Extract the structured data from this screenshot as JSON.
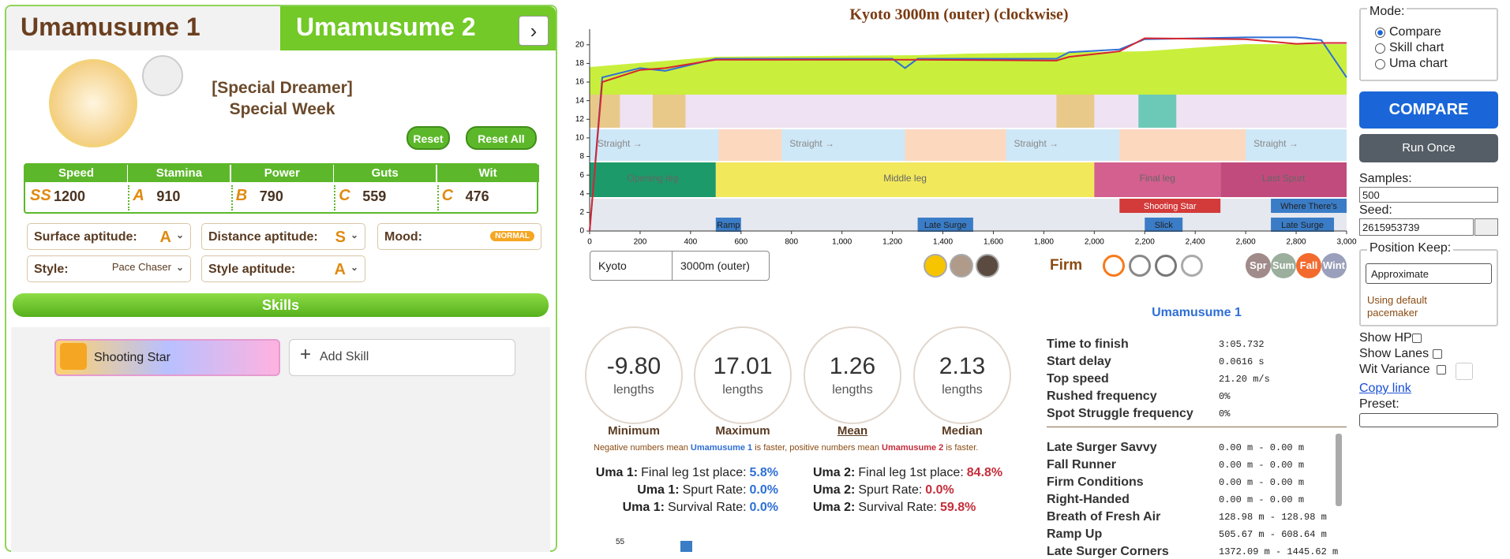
{
  "tabs": [
    "Umamusume 1",
    "Umamusume 2"
  ],
  "uma": {
    "title": "[Special Dreamer]",
    "name": "Special Week",
    "buttons": [
      "Reset",
      "Reset All"
    ]
  },
  "stats": [
    {
      "label": "Speed",
      "grade": "SS",
      "value": 1200
    },
    {
      "label": "Stamina",
      "grade": "A",
      "value": 910
    },
    {
      "label": "Power",
      "grade": "B",
      "value": 790
    },
    {
      "label": "Guts",
      "grade": "C",
      "value": 559
    },
    {
      "label": "Wit",
      "grade": "C",
      "value": 476
    }
  ],
  "aptitudes": [
    {
      "label": "Surface aptitude:",
      "value": "A"
    },
    {
      "label": "Distance aptitude:",
      "value": "S"
    },
    {
      "label": "Mood:",
      "value": "NORMAL"
    },
    {
      "label": "Style:",
      "value": "Pace Chaser"
    },
    {
      "label": "Style aptitude:",
      "value": "A"
    }
  ],
  "skills": {
    "header": "Skills",
    "items": [
      "Shooting Star"
    ],
    "add": "Add Skill"
  },
  "race_chart": {
    "type": "line",
    "title": "Kyoto 3000m (outer) (clockwise)",
    "x": [
      0,
      50,
      200,
      300,
      500,
      1200,
      1250,
      1300,
      1850,
      1900,
      2100,
      2200,
      2600,
      2800,
      2900,
      3000
    ],
    "series": [
      {
        "color": "#2f6fd6",
        "values": [
          0,
          16.5,
          17.5,
          17.2,
          18.5,
          18.5,
          17.5,
          18.5,
          18.5,
          19.2,
          19.5,
          20.6,
          20.8,
          20.8,
          20.5,
          16.5
        ]
      },
      {
        "color": "#d6262e",
        "values": [
          0,
          16,
          17.3,
          17.5,
          18.4,
          18.4,
          18.4,
          18.4,
          18.3,
          18.7,
          19.3,
          20.7,
          20.6,
          20.1,
          20.2,
          20.2
        ]
      }
    ],
    "xlim": [
      0,
      3000
    ],
    "ylim": [
      0,
      21
    ],
    "xticks": [
      0,
      200,
      400,
      600,
      800,
      {
        "value": 1000,
        "label": "1,000"
      },
      {
        "value": 1200,
        "label": "1,200"
      },
      {
        "value": 1400,
        "label": "1,400"
      },
      {
        "value": 1600,
        "label": "1,600"
      },
      {
        "value": 1800,
        "label": "1,800"
      },
      {
        "value": 2000,
        "label": "2,000"
      },
      {
        "value": 2200,
        "label": "2,200"
      },
      {
        "value": 2400,
        "label": "2,400"
      },
      {
        "value": 2600,
        "label": "2,600"
      },
      {
        "value": 2800,
        "label": "2,800"
      },
      {
        "value": 3000,
        "label": "3,000"
      }
    ],
    "yticks": [
      0,
      2,
      4,
      6,
      8,
      10,
      12,
      14,
      16,
      18,
      20
    ],
    "phases": [
      "Opening leg",
      "Middle leg",
      "Final leg",
      "Last Spurt"
    ],
    "sections": [
      "Straight →",
      "Straight →",
      "Straight →",
      "Straight →"
    ],
    "skill_labels": [
      "Ramp",
      "Late Surge",
      "Shooting Star",
      "Slick",
      "Where There's",
      "Late Surge"
    ]
  },
  "controls": {
    "track": "Kyoto",
    "course": "3000m (outer)",
    "ground": "Firm",
    "seasons": [
      "Spr",
      "Sum",
      "Fall",
      "Wint"
    ]
  },
  "summary": {
    "values": [
      {
        "value": "-9.80",
        "unit": "lengths",
        "label": "Minimum"
      },
      {
        "value": "17.01",
        "unit": "lengths",
        "label": "Maximum"
      },
      {
        "value": "1.26",
        "unit": "lengths",
        "label": "Mean"
      },
      {
        "value": "2.13",
        "unit": "lengths",
        "label": "Median"
      }
    ],
    "note": [
      "Negative numbers mean ",
      "Umamusume 1",
      " is faster, positive numbers mean ",
      "Umamusume 2",
      " is faster."
    ],
    "rates": [
      [
        {
          "who": "Uma 1:",
          "what": "Final leg 1st place:",
          "value": "5.8%"
        },
        {
          "who": "Uma 2:",
          "what": "Final leg 1st place:",
          "value": "84.8%"
        }
      ],
      [
        {
          "who": "Uma 1:",
          "what": "Spurt Rate:",
          "value": "0.0%"
        },
        {
          "who": "Uma 2:",
          "what": "Spurt Rate:",
          "value": "0.0%"
        }
      ],
      [
        {
          "who": "Uma 1:",
          "what": "Survival Rate:",
          "value": "0.0%"
        },
        {
          "who": "Uma 2:",
          "what": "Survival Rate:",
          "value": "59.8%"
        }
      ]
    ],
    "hist_tick": 55
  },
  "details": {
    "header": "Umamusume 1",
    "rows": [
      [
        "Time to finish",
        "3:05.732"
      ],
      [
        "Start delay",
        "0.0616 s"
      ],
      [
        "Top speed",
        "21.20 m/s"
      ],
      [
        "Rushed frequency",
        "0%"
      ],
      [
        "Spot Struggle frequency",
        "0%"
      ]
    ],
    "skills": [
      [
        "Late Surger Savvy",
        "0.00 m - 0.00 m"
      ],
      [
        "Fall Runner",
        "0.00 m - 0.00 m"
      ],
      [
        "Firm Conditions",
        "0.00 m - 0.00 m"
      ],
      [
        "Right-Handed",
        "0.00 m - 0.00 m"
      ],
      [
        "Breath of Fresh Air",
        "128.98 m - 128.98 m"
      ],
      [
        "Ramp Up",
        "505.67 m - 608.64 m"
      ],
      [
        "Late Surger Corners",
        "1372.09 m - 1445.62 m"
      ]
    ]
  },
  "sidebar": {
    "mode_label": "Mode:",
    "modes": [
      "Compare",
      "Skill chart",
      "Uma chart"
    ],
    "compare": "COMPARE",
    "run_once": "Run Once",
    "samples_label": "Samples:",
    "samples": 500,
    "seed_label": "Seed:",
    "seed": 2615953739,
    "position_keep": "Position Keep:",
    "pk_value": "Approximate",
    "pk_note": "Using default pacemaker",
    "toggles": [
      "Show HP",
      "Show Lanes",
      "Wit Variance"
    ],
    "copy_link": "Copy link",
    "preset": "Preset:"
  }
}
